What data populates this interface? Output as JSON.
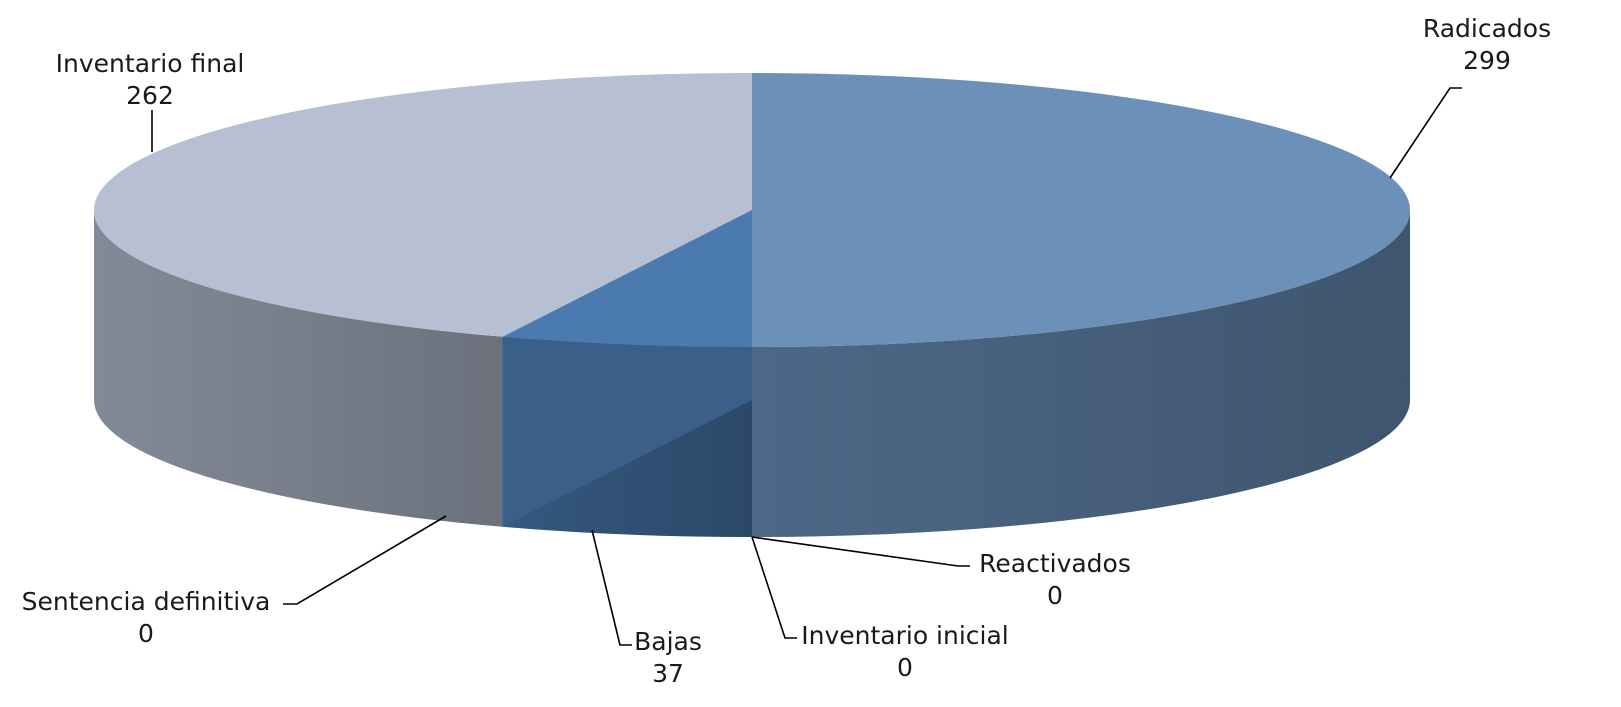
{
  "chart_data": {
    "type": "pie",
    "style": "3d",
    "title": "",
    "slices": [
      {
        "label": "Radicados",
        "value": 299,
        "color": "#6b91bb"
      },
      {
        "label": "Reactivados",
        "value": 0,
        "color": "#6b91bb"
      },
      {
        "label": "Inventario inicial",
        "value": 0,
        "color": "#4a7ab0"
      },
      {
        "label": "Bajas",
        "value": 37,
        "color": "#4a7ab0"
      },
      {
        "label": "Sentencia definitiva",
        "value": 0,
        "color": "#4a7ab0"
      },
      {
        "label": "Inventario final",
        "value": 262,
        "color": "#b6c0d2"
      }
    ],
    "legend": "none"
  }
}
